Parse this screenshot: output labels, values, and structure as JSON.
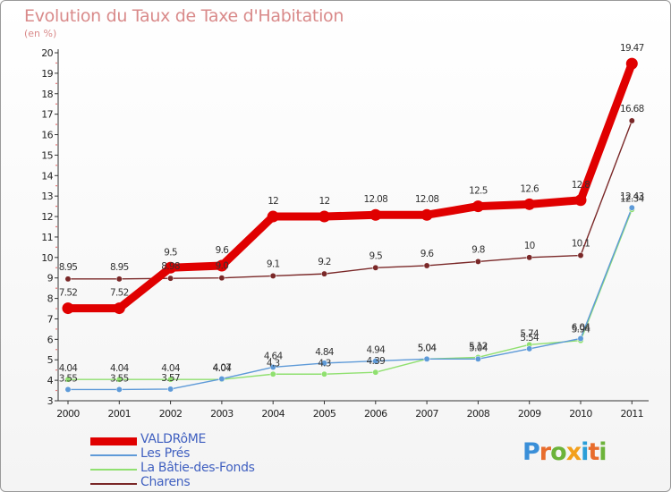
{
  "chart_data": {
    "type": "line",
    "title": "Evolution du Taux de Taxe d'Habitation",
    "subtitle": "(en %)",
    "x": [
      "2000",
      "2001",
      "2002",
      "2003",
      "2004",
      "2005",
      "2006",
      "2007",
      "2008",
      "2009",
      "2010",
      "2011"
    ],
    "ylim": [
      3,
      20
    ],
    "yticks": [
      "3",
      "4",
      "5",
      "6",
      "7",
      "8",
      "9",
      "10",
      "11",
      "12",
      "13",
      "14",
      "15",
      "16",
      "17",
      "18",
      "19",
      "20"
    ],
    "grid": false,
    "legend_position": "bottom-left",
    "series": [
      {
        "name": "VALDRôME",
        "color": "#e00000",
        "width": "thick",
        "values": [
          7.52,
          7.52,
          9.5,
          9.6,
          12,
          12,
          12.08,
          12.08,
          12.5,
          12.6,
          12.8,
          19.47
        ],
        "labels": [
          "7.52",
          "7.52",
          "9.5",
          "9.6",
          "12",
          "12",
          "12.08",
          "12.08",
          "12.5",
          "12.6",
          "12.8",
          "19.47"
        ]
      },
      {
        "name": "Les Prés",
        "color": "#5e9ad8",
        "width": "thin",
        "values": [
          3.55,
          3.55,
          3.57,
          4.07,
          4.64,
          4.84,
          4.94,
          5.04,
          5.04,
          5.54,
          6.04,
          12.43
        ],
        "labels": [
          "3.55",
          "3.55",
          "3.57",
          "4.07",
          "4.64",
          "4.84",
          "4.94",
          "5.04",
          "5.04",
          "5.54",
          "6.04",
          "12.43"
        ]
      },
      {
        "name": "La Bâtie-des-Fonds",
        "color": "#90e070",
        "width": "thin",
        "values": [
          4.04,
          4.04,
          4.04,
          4.04,
          4.3,
          4.3,
          4.39,
          5.04,
          5.12,
          5.74,
          5.94,
          12.34
        ],
        "labels": [
          "4.04",
          "4.04",
          "4.04",
          "4.04",
          "4.3",
          "4.3",
          "4.39",
          "5.04",
          "5.12",
          "5.74",
          "5.94",
          "12.34"
        ]
      },
      {
        "name": "Charens",
        "color": "#7a2828",
        "width": "thin",
        "values": [
          8.95,
          8.95,
          8.98,
          9.0,
          9.1,
          9.2,
          9.5,
          9.6,
          9.8,
          10,
          10.1,
          16.68
        ],
        "labels": [
          "8.95",
          "8.95",
          "8.98",
          "9.0",
          "9.1",
          "9.2",
          "9.5",
          "9.6",
          "9.8",
          "10",
          "10.1",
          "16.68"
        ]
      }
    ]
  },
  "logo": {
    "p1": "P",
    "p2": "r",
    "p3": "o",
    "p4": "x",
    "p5": "i",
    "p6": "t",
    "p7": "i"
  }
}
